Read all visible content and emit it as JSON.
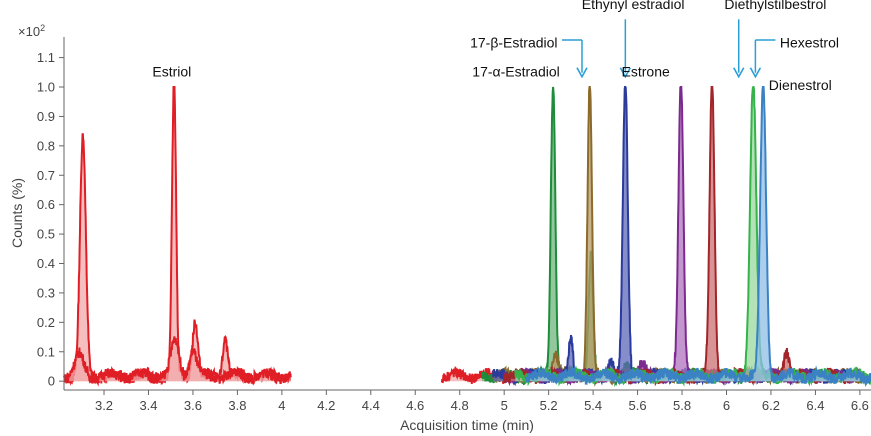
{
  "chart_data": {
    "type": "line",
    "title": "",
    "xlabel": "Acquisition time (min)",
    "ylabel": "Counts (%)",
    "y_multiplier": "×10",
    "y_multiplier_exp": "2",
    "xlim": [
      3.02,
      6.65
    ],
    "ylim": [
      -0.03,
      1.17
    ],
    "x_ticks": [
      3.2,
      3.4,
      3.6,
      3.8,
      4,
      4.2,
      4.4,
      4.6,
      4.8,
      5,
      5.2,
      5.4,
      5.6,
      5.8,
      6,
      6.2,
      6.4,
      6.6
    ],
    "x_tick_labels": [
      "3.2",
      "3.4",
      "3.6",
      "3.8",
      "4",
      "4.2",
      "4.4",
      "4.6",
      "4.8",
      "5",
      "5.2",
      "5.4",
      "5.6",
      "5.8",
      "6",
      "6.2",
      "6.4",
      "6.6"
    ],
    "y_ticks": [
      0,
      0.1,
      0.2,
      0.3,
      0.4,
      0.5,
      0.6,
      0.7,
      0.8,
      0.9,
      1.0,
      1.1
    ],
    "y_tick_labels": [
      "0",
      "0.1",
      "0.2",
      "0.3",
      "0.4",
      "0.5",
      "0.6",
      "0.7",
      "0.8",
      "0.9",
      "1.0",
      "1.1"
    ],
    "grid": false,
    "series": [
      {
        "color": "#e01e26",
        "fill": "#f2a9aa",
        "segments": [
          [
            3.02,
            4.04
          ],
          [
            4.72,
            5.0
          ]
        ],
        "peaks": [
          {
            "x": 3.105,
            "y": 0.81,
            "w": 0.013
          },
          {
            "x": 3.515,
            "y": 1.0,
            "w": 0.009
          },
          {
            "x": 3.61,
            "y": 0.19,
            "w": 0.012
          },
          {
            "x": 3.745,
            "y": 0.13,
            "w": 0.011
          }
        ]
      },
      {
        "color": "#e01e26",
        "fill": "#f2a9aa",
        "segments": [
          [
            3.03,
            4.04
          ]
        ],
        "peaks": [
          {
            "x": 3.09,
            "y": 0.07,
            "w": 0.02
          },
          {
            "x": 3.52,
            "y": 0.12,
            "w": 0.018
          },
          {
            "x": 3.6,
            "y": 0.09,
            "w": 0.015
          }
        ]
      },
      {
        "color": "#1e8c3a",
        "fill": "#6fb57d",
        "segments": [
          [
            4.9,
            6.65
          ]
        ],
        "peaks": [
          {
            "x": 5.22,
            "y": 1.0,
            "w": 0.01
          },
          {
            "x": 5.39,
            "y": 0.42,
            "w": 0.01
          },
          {
            "x": 5.55,
            "y": 0.03,
            "w": 0.02
          }
        ]
      },
      {
        "color": "#8b6a2c",
        "fill": "#b79a63",
        "segments": [
          [
            4.95,
            6.6
          ]
        ],
        "peaks": [
          {
            "x": 5.385,
            "y": 1.0,
            "w": 0.01
          },
          {
            "x": 5.23,
            "y": 0.08,
            "w": 0.012
          }
        ]
      },
      {
        "color": "#2a3b9c",
        "fill": "#5c67b8",
        "segments": [
          [
            4.95,
            6.55
          ]
        ],
        "peaks": [
          {
            "x": 5.545,
            "y": 1.0,
            "w": 0.011
          },
          {
            "x": 5.3,
            "y": 0.13,
            "w": 0.01
          },
          {
            "x": 5.48,
            "y": 0.06,
            "w": 0.012
          }
        ]
      },
      {
        "color": "#7d2a8e",
        "fill": "#b073bf",
        "segments": [
          [
            5.0,
            6.6
          ]
        ],
        "peaks": [
          {
            "x": 5.795,
            "y": 1.0,
            "w": 0.011
          },
          {
            "x": 5.62,
            "y": 0.04,
            "w": 0.015
          }
        ]
      },
      {
        "color": "#a2252a",
        "fill": "#cb6f72",
        "segments": [
          [
            5.0,
            6.6
          ]
        ],
        "peaks": [
          {
            "x": 5.935,
            "y": 1.0,
            "w": 0.011
          },
          {
            "x": 6.27,
            "y": 0.09,
            "w": 0.012
          }
        ]
      },
      {
        "color": "#35b34a",
        "fill": "#9ad89f",
        "segments": [
          [
            5.05,
            6.65
          ]
        ],
        "peaks": [
          {
            "x": 6.12,
            "y": 1.0,
            "w": 0.014
          }
        ]
      },
      {
        "color": "#3b82c4",
        "fill": "#8ebde6",
        "segments": [
          [
            5.1,
            6.65
          ]
        ],
        "peaks": [
          {
            "x": 6.165,
            "y": 1.0,
            "w": 0.013
          }
        ]
      }
    ],
    "annotations": [
      {
        "text": "Estriol",
        "x": 3.505,
        "y": 1.035,
        "anchor": "middle"
      },
      {
        "text": "Ethynyl estradiol",
        "x": 5.58,
        "y": 1.265,
        "anchor": "middle",
        "arrow": {
          "x": 5.545,
          "from": 1.23,
          "to": 1.035
        }
      },
      {
        "text": "Diethylstilbestrol",
        "x": 6.22,
        "y": 1.265,
        "anchor": "middle",
        "arrow": {
          "x": 6.055,
          "from": 1.23,
          "to": 1.035
        }
      },
      {
        "text": "17-β-Estradiol",
        "x": 5.24,
        "y": 1.135,
        "anchor": "end",
        "leader": {
          "y": 1.16,
          "x1": 5.26,
          "x2": 5.35
        },
        "arrow": {
          "x": 5.35,
          "from": 1.16,
          "to": 1.035
        }
      },
      {
        "text": "Hexestrol",
        "x": 6.24,
        "y": 1.135,
        "anchor": "start",
        "leader": {
          "y": 1.16,
          "x1": 6.13,
          "x2": 6.22
        },
        "arrow": {
          "x": 6.13,
          "from": 1.16,
          "to": 1.035
        }
      },
      {
        "text": "17-α-Estradiol",
        "x": 5.25,
        "y": 1.035,
        "anchor": "end"
      },
      {
        "text": "Estrone",
        "x": 5.745,
        "y": 1.035,
        "anchor": "end"
      },
      {
        "text": "Dienestrol",
        "x": 6.19,
        "y": 0.99,
        "anchor": "start"
      }
    ]
  }
}
